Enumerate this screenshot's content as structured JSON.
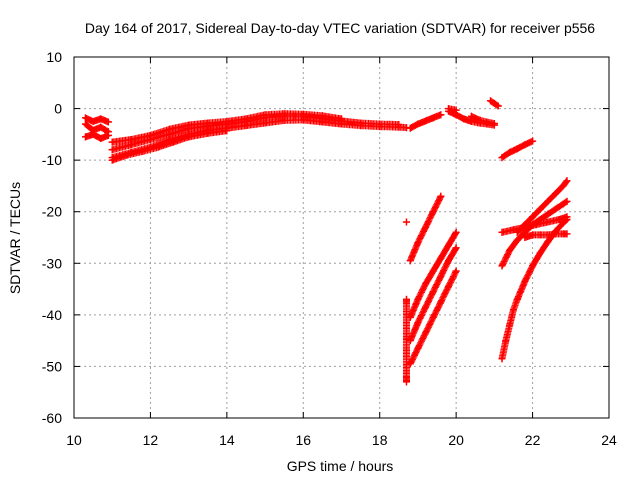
{
  "chart_data": {
    "type": "scatter",
    "title": "Day 164 of 2017, Sidereal Day-to-day VTEC variation (SDTVAR) for receiver p556",
    "xlabel": "GPS time / hours",
    "ylabel": "SDTVAR / TECUs",
    "xlim": [
      10,
      24
    ],
    "ylim": [
      -60,
      10
    ],
    "xticks": [
      "10",
      "12",
      "14",
      "16",
      "18",
      "20",
      "22",
      "24"
    ],
    "yticks": [
      "10",
      "0",
      "-10",
      "-20",
      "-30",
      "-40",
      "-50",
      "-60"
    ],
    "grid": true,
    "marker": "plus",
    "color": "#ff0000",
    "series": [
      {
        "x": [
          10.3,
          10.5,
          10.7,
          10.9
        ],
        "y": [
          -3.0,
          -4.2,
          -3.6,
          -4.5
        ]
      },
      {
        "x": [
          10.3,
          10.5,
          10.7,
          10.9
        ],
        "y": [
          -5.5,
          -5.0,
          -5.8,
          -5.2
        ]
      },
      {
        "x": [
          10.3,
          10.5,
          10.7,
          10.9
        ],
        "y": [
          -1.8,
          -2.5,
          -2.0,
          -2.6
        ]
      },
      {
        "x": [
          11.0,
          11.5,
          12.0,
          12.5,
          13.0,
          13.5,
          14.0,
          14.5,
          15.0,
          15.5,
          16.0,
          16.5,
          17.0,
          17.5,
          18.0,
          18.5,
          18.7
        ],
        "y": [
          -9.5,
          -8.5,
          -7.5,
          -6.0,
          -5.0,
          -4.2,
          -3.8,
          -3.3,
          -2.8,
          -2.3,
          -2.2,
          -2.6,
          -3.0,
          -3.3,
          -3.5,
          -3.6,
          -3.7
        ]
      },
      {
        "x": [
          11.0,
          11.5,
          12.0,
          12.5,
          13.0,
          13.5,
          14.0,
          14.5,
          15.0,
          15.5,
          16.0,
          16.5,
          17.0,
          17.5,
          18.0,
          18.5
        ],
        "y": [
          -8.0,
          -7.0,
          -6.0,
          -5.0,
          -3.9,
          -3.4,
          -3.0,
          -2.5,
          -1.8,
          -1.4,
          -1.5,
          -1.9,
          -2.4,
          -2.8,
          -3.0,
          -3.1
        ]
      },
      {
        "x": [
          11.0,
          11.5,
          12.0,
          12.5,
          13.0,
          13.5,
          14.0,
          14.5,
          15.0,
          15.5,
          16.0,
          16.5,
          17.0
        ],
        "y": [
          -6.5,
          -6.0,
          -5.2,
          -4.0,
          -3.2,
          -2.8,
          -2.5,
          -2.0,
          -1.2,
          -1.0,
          -1.1,
          -1.4,
          -2.0
        ]
      },
      {
        "x": [
          11.0,
          11.4,
          11.8,
          12.2,
          12.6,
          13.0,
          13.5,
          14.0
        ],
        "y": [
          -10.0,
          -9.0,
          -8.3,
          -7.5,
          -6.5,
          -5.5,
          -4.8,
          -4.3
        ]
      },
      {
        "x": [
          18.8,
          19.0,
          19.2,
          19.4,
          19.6
        ],
        "y": [
          -3.8,
          -3.0,
          -2.4,
          -1.8,
          -1.2
        ]
      },
      {
        "x": [
          19.8,
          20.0,
          20.2,
          20.4,
          20.6,
          20.8,
          21.0
        ],
        "y": [
          -0.5,
          -1.2,
          -2.0,
          -2.5,
          -2.8,
          -3.0,
          -3.2
        ]
      },
      {
        "x": [
          20.4,
          20.6,
          20.8,
          21.0
        ],
        "y": [
          -1.5,
          -2.2,
          -2.6,
          -2.9
        ]
      },
      {
        "x": [
          20.9,
          21.0,
          21.1
        ],
        "y": [
          1.5,
          1.0,
          0.5
        ]
      },
      {
        "x": [
          19.8,
          20.0
        ],
        "y": [
          0.0,
          -0.3
        ]
      },
      {
        "x": [
          21.2,
          21.4,
          21.6,
          21.8,
          22.0
        ],
        "y": [
          -9.5,
          -8.5,
          -7.8,
          -7.0,
          -6.3
        ]
      },
      {
        "x": [
          18.7
        ],
        "y": [
          -22.0
        ]
      },
      {
        "x": [
          18.8,
          19.0,
          19.2,
          19.4,
          19.6
        ],
        "y": [
          -29.5,
          -26.0,
          -23.0,
          -20.0,
          -17.0
        ]
      },
      {
        "x": [
          18.8,
          19.0,
          19.2,
          19.4,
          19.6,
          19.8,
          20.0
        ],
        "y": [
          -40.5,
          -37.0,
          -34.0,
          -31.5,
          -29.0,
          -26.5,
          -24.0
        ]
      },
      {
        "x": [
          18.8,
          19.0,
          19.2,
          19.4,
          19.6,
          19.8,
          20.0
        ],
        "y": [
          -45.0,
          -41.5,
          -38.5,
          -35.5,
          -32.5,
          -29.5,
          -27.0
        ]
      },
      {
        "x": [
          18.8,
          19.0,
          19.2,
          19.4,
          19.6,
          19.8,
          20.0
        ],
        "y": [
          -49.5,
          -46.5,
          -43.5,
          -40.5,
          -37.5,
          -34.5,
          -31.5
        ]
      },
      {
        "x": [
          18.7,
          18.7,
          18.7,
          18.7,
          18.7
        ],
        "y": [
          -37.0,
          -37.5,
          -44.5,
          -52.0,
          -53.0
        ]
      },
      {
        "x": [
          21.2,
          21.5,
          21.8,
          22.1,
          22.4,
          22.7,
          22.9
        ],
        "y": [
          -24.0,
          -23.5,
          -23.0,
          -22.5,
          -22.0,
          -21.5,
          -21.0
        ]
      },
      {
        "x": [
          21.2,
          21.4,
          21.6,
          21.8,
          22.0,
          22.2,
          22.4,
          22.6,
          22.8,
          22.9
        ],
        "y": [
          -30.5,
          -27.5,
          -25.5,
          -24.0,
          -22.5,
          -21.5,
          -20.5,
          -19.5,
          -18.5,
          -18.0
        ]
      },
      {
        "x": [
          21.6,
          21.8,
          22.0,
          22.2,
          22.4,
          22.6,
          22.8,
          22.9
        ],
        "y": [
          -24.0,
          -22.5,
          -21.0,
          -19.5,
          -18.0,
          -16.5,
          -15.0,
          -14.0
        ]
      },
      {
        "x": [
          21.8,
          22.0,
          22.2,
          22.4,
          22.6,
          22.8,
          22.9
        ],
        "y": [
          -25.0,
          -24.5,
          -24.5,
          -24.5,
          -24.3,
          -24.3,
          -24.3
        ]
      },
      {
        "x": [
          21.2,
          21.3,
          21.4,
          21.5,
          21.6,
          21.8,
          22.0,
          22.2,
          22.4,
          22.6,
          22.8,
          22.9
        ],
        "y": [
          -48.5,
          -45.0,
          -42.0,
          -39.0,
          -37.0,
          -33.5,
          -30.5,
          -28.0,
          -25.8,
          -23.8,
          -22.2,
          -21.5
        ]
      }
    ]
  }
}
